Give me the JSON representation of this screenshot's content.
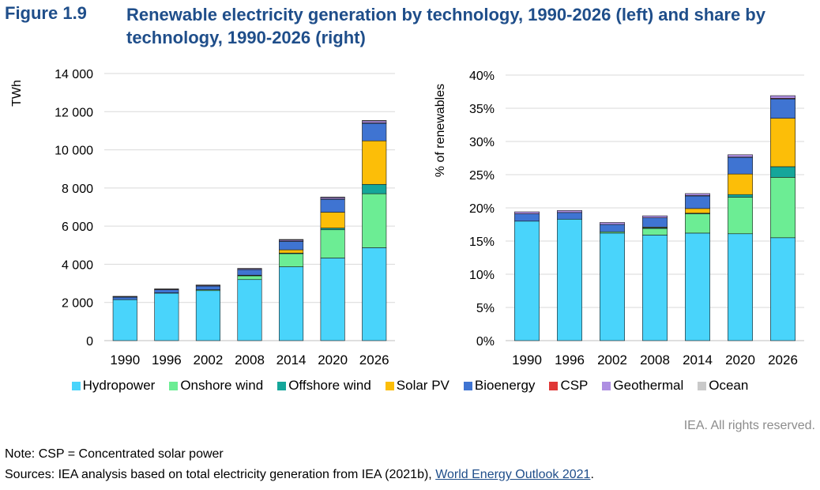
{
  "figure": {
    "label": "Figure 1.9",
    "title": "Renewable electricity generation by technology, 1990-2026 (left) and share by technology, 1990-2026 (right)"
  },
  "chart_data": [
    {
      "type": "bar",
      "stacked": true,
      "ylabel": "TWh",
      "ylim": [
        0,
        14000
      ],
      "yticks": [
        "0",
        "2 000",
        "4 000",
        "6 000",
        "8 000",
        "10 000",
        "12 000",
        "14 000"
      ],
      "categories": [
        "1990",
        "1996",
        "2002",
        "2008",
        "2014",
        "2020",
        "2026"
      ],
      "series": [
        {
          "name": "Hydropower",
          "color": "#49d4fb",
          "values": [
            2150,
            2500,
            2620,
            3200,
            3870,
            4330,
            4870
          ]
        },
        {
          "name": "Onshore wind",
          "color": "#6ced94",
          "values": [
            0,
            5,
            50,
            200,
            690,
            1480,
            2830
          ]
        },
        {
          "name": "Offshore wind",
          "color": "#15a69a",
          "values": [
            0,
            0,
            0,
            15,
            30,
            90,
            490
          ]
        },
        {
          "name": "Solar PV",
          "color": "#fcbe08",
          "values": [
            0,
            0,
            0,
            15,
            170,
            830,
            2280
          ]
        },
        {
          "name": "Bioenergy",
          "color": "#3f74d2",
          "values": [
            130,
            160,
            190,
            290,
            450,
            680,
            920
          ]
        },
        {
          "name": "CSP",
          "color": "#e03837",
          "values": [
            0,
            0,
            0,
            0,
            10,
            15,
            20
          ]
        },
        {
          "name": "Geothermal",
          "color": "#ae8fe2",
          "values": [
            36,
            40,
            50,
            60,
            75,
            95,
            120
          ]
        },
        {
          "name": "Ocean",
          "color": "#c9c9c9",
          "values": [
            5,
            5,
            5,
            5,
            5,
            5,
            5
          ]
        }
      ]
    },
    {
      "type": "bar",
      "stacked": true,
      "ylabel": "% of renewables",
      "ylim": [
        0,
        40
      ],
      "yticks": [
        "0%",
        "5%",
        "10%",
        "15%",
        "20%",
        "25%",
        "30%",
        "35%",
        "40%"
      ],
      "categories": [
        "1990",
        "1996",
        "2002",
        "2008",
        "2014",
        "2020",
        "2026"
      ],
      "series": [
        {
          "name": "Hydropower",
          "color": "#49d4fb",
          "values": [
            18.0,
            18.3,
            16.2,
            15.9,
            16.2,
            16.1,
            15.5
          ]
        },
        {
          "name": "Onshore wind",
          "color": "#6ced94",
          "values": [
            0,
            0,
            0.2,
            1.0,
            2.9,
            5.5,
            9.1
          ]
        },
        {
          "name": "Offshore wind",
          "color": "#15a69a",
          "values": [
            0,
            0,
            0,
            0.1,
            0.1,
            0.4,
            1.6
          ]
        },
        {
          "name": "Solar PV",
          "color": "#fcbe08",
          "values": [
            0,
            0,
            0,
            0.1,
            0.7,
            3.1,
            7.3
          ]
        },
        {
          "name": "Bioenergy",
          "color": "#3f74d2",
          "values": [
            1.1,
            1.0,
            1.1,
            1.4,
            1.9,
            2.5,
            2.9
          ]
        },
        {
          "name": "CSP",
          "color": "#e03837",
          "values": [
            0,
            0,
            0,
            0,
            0.05,
            0.05,
            0.1
          ]
        },
        {
          "name": "Geothermal",
          "color": "#ae8fe2",
          "values": [
            0.3,
            0.3,
            0.3,
            0.3,
            0.3,
            0.35,
            0.4
          ]
        },
        {
          "name": "Ocean",
          "color": "#c9c9c9",
          "values": [
            0,
            0,
            0,
            0,
            0,
            0,
            0
          ]
        }
      ]
    }
  ],
  "legend": [
    "Hydropower",
    "Onshore wind",
    "Offshore wind",
    "Solar PV",
    "Bioenergy",
    "CSP",
    "Geothermal",
    "Ocean"
  ],
  "rights": "IEA. All rights reserved.",
  "note": "Note: CSP = Concentrated solar power",
  "sources": {
    "prefix": "Sources: IEA analysis based on total electricity generation from IEA (2021b), ",
    "link": "World Energy Outlook 2021",
    "suffix": "."
  }
}
